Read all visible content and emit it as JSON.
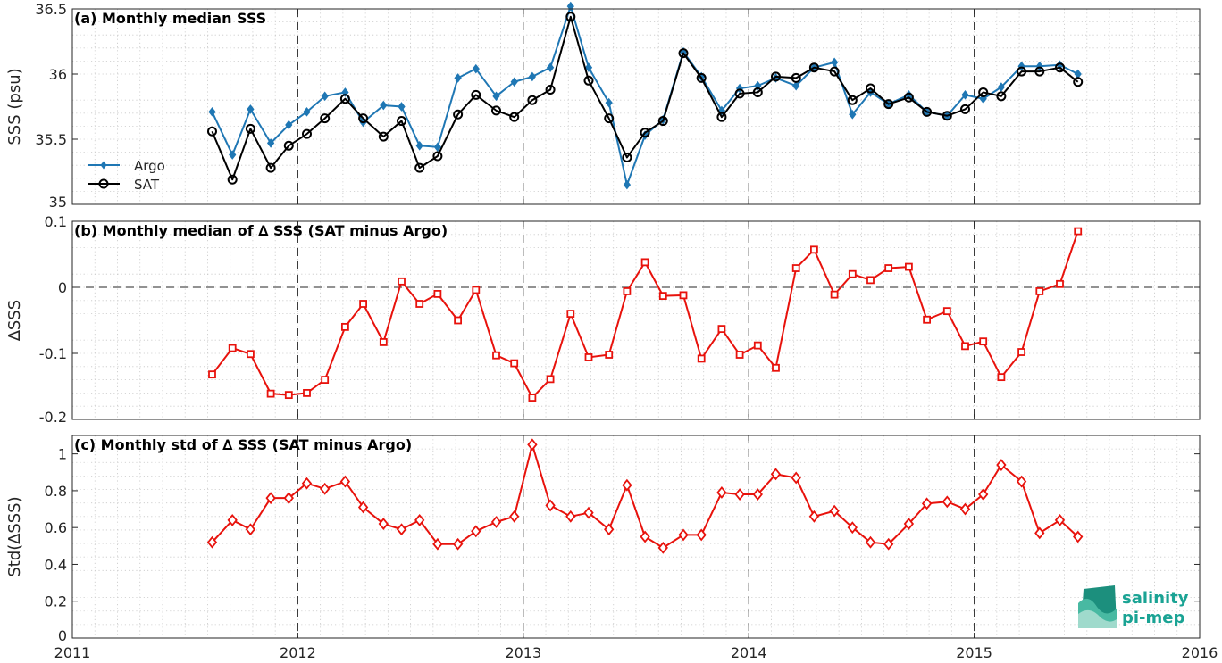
{
  "logo": {
    "line1": "salinity",
    "line2": "pi-mep"
  },
  "colors": {
    "argo": "#1f77b4",
    "sat": "#000000",
    "delta": "#e8120c",
    "grid": "#c8c8c8"
  },
  "chart_data": [
    {
      "id": "a",
      "type": "line",
      "title": "(a) Monthly median SSS",
      "ylabel": "SSS (psu)",
      "xlim": [
        2011,
        2016
      ],
      "ylim": [
        35,
        36.5
      ],
      "xticks": [
        "2011",
        "2012",
        "2013",
        "2014",
        "2015",
        "2016"
      ],
      "yticks": [
        "35",
        "35.5",
        "36",
        "36.5"
      ],
      "legend": "middle-left",
      "grid": true,
      "x": [
        2011.62,
        2011.71,
        2011.79,
        2011.88,
        2011.96,
        2012.04,
        2012.12,
        2012.21,
        2012.29,
        2012.38,
        2012.46,
        2012.54,
        2012.62,
        2012.71,
        2012.79,
        2012.88,
        2012.96,
        2013.04,
        2013.12,
        2013.21,
        2013.29,
        2013.38,
        2013.46,
        2013.54,
        2013.62,
        2013.71,
        2013.79,
        2013.88,
        2013.96,
        2014.04,
        2014.12,
        2014.21,
        2014.29,
        2014.38,
        2014.46,
        2014.54,
        2014.62,
        2014.71,
        2014.79,
        2014.88,
        2014.96,
        2015.04,
        2015.12,
        2015.21,
        2015.29,
        2015.38,
        2015.46
      ],
      "series": [
        {
          "name": "Argo",
          "marker": "diamond",
          "values": [
            35.71,
            35.38,
            35.73,
            35.47,
            35.61,
            35.71,
            35.83,
            35.86,
            35.63,
            35.76,
            35.75,
            35.45,
            35.44,
            35.97,
            36.04,
            35.83,
            35.94,
            35.98,
            36.05,
            36.52,
            36.05,
            35.78,
            35.15,
            35.53,
            35.65,
            36.17,
            35.98,
            35.72,
            35.89,
            35.91,
            35.97,
            35.91,
            36.05,
            36.09,
            35.69,
            35.86,
            35.77,
            35.84,
            35.71,
            35.68,
            35.84,
            35.81,
            35.9,
            36.06,
            36.06,
            36.07,
            36.0
          ]
        },
        {
          "name": "SAT",
          "marker": "circle",
          "values": [
            35.56,
            35.19,
            35.58,
            35.28,
            35.45,
            35.54,
            35.66,
            35.81,
            35.66,
            35.52,
            35.64,
            35.28,
            35.37,
            35.69,
            35.84,
            35.72,
            35.67,
            35.8,
            35.88,
            36.44,
            35.95,
            35.66,
            35.36,
            35.55,
            35.64,
            36.16,
            35.97,
            35.67,
            35.85,
            35.86,
            35.98,
            35.97,
            36.05,
            36.02,
            35.8,
            35.89,
            35.77,
            35.82,
            35.71,
            35.68,
            35.73,
            35.86,
            35.83,
            36.02,
            36.02,
            36.05,
            35.94
          ]
        }
      ]
    },
    {
      "id": "b",
      "type": "line",
      "title": "(b) Monthly median of ∆ SSS (SAT minus Argo)",
      "ylabel": "∆SSS",
      "xlim": [
        2011,
        2016
      ],
      "ylim": [
        -0.2,
        0.1
      ],
      "xticks": [
        "2011",
        "2012",
        "2013",
        "2014",
        "2015",
        "2016"
      ],
      "yticks": [
        "-0.2",
        "-0.1",
        "0",
        "0.1"
      ],
      "zero_line": true,
      "grid": true,
      "x": [
        2011.62,
        2011.71,
        2011.79,
        2011.88,
        2011.96,
        2012.04,
        2012.12,
        2012.21,
        2012.29,
        2012.38,
        2012.46,
        2012.54,
        2012.62,
        2012.71,
        2012.79,
        2012.88,
        2012.96,
        2013.04,
        2013.12,
        2013.21,
        2013.29,
        2013.38,
        2013.46,
        2013.54,
        2013.62,
        2013.71,
        2013.79,
        2013.88,
        2013.96,
        2014.04,
        2014.12,
        2014.21,
        2014.29,
        2014.38,
        2014.46,
        2014.54,
        2014.62,
        2014.71,
        2014.79,
        2014.88,
        2014.96,
        2015.04,
        2015.12,
        2015.21,
        2015.29,
        2015.38,
        2015.46
      ],
      "series": [
        {
          "name": "",
          "marker": "square",
          "values": [
            -0.132,
            -0.092,
            -0.101,
            -0.161,
            -0.163,
            -0.16,
            -0.14,
            -0.06,
            -0.025,
            -0.083,
            0.009,
            -0.025,
            -0.01,
            -0.05,
            -0.004,
            -0.103,
            -0.115,
            -0.167,
            -0.139,
            -0.04,
            -0.106,
            -0.102,
            -0.006,
            0.038,
            -0.013,
            -0.012,
            -0.108,
            -0.063,
            -0.102,
            -0.088,
            -0.122,
            0.029,
            0.057,
            -0.011,
            0.02,
            0.011,
            0.029,
            0.031,
            -0.049,
            -0.036,
            -0.089,
            -0.082,
            -0.136,
            -0.098,
            -0.006,
            0.005,
            0.085
          ]
        }
      ]
    },
    {
      "id": "c",
      "type": "line",
      "title": "(c) Monthly std of ∆ SSS (SAT minus Argo)",
      "ylabel": "Std(∆SSS)",
      "xlim": [
        2011,
        2016
      ],
      "ylim": [
        0,
        1.1
      ],
      "xticks": [
        "2011",
        "2012",
        "2013",
        "2014",
        "2015",
        "2016"
      ],
      "yticks": [
        "0",
        "0.2",
        "0.4",
        "0.6",
        "0.8",
        "1"
      ],
      "grid": true,
      "x": [
        2011.62,
        2011.71,
        2011.79,
        2011.88,
        2011.96,
        2012.04,
        2012.12,
        2012.21,
        2012.29,
        2012.38,
        2012.46,
        2012.54,
        2012.62,
        2012.71,
        2012.79,
        2012.88,
        2012.96,
        2013.04,
        2013.12,
        2013.21,
        2013.29,
        2013.38,
        2013.46,
        2013.54,
        2013.62,
        2013.71,
        2013.79,
        2013.88,
        2013.96,
        2014.04,
        2014.12,
        2014.21,
        2014.29,
        2014.38,
        2014.46,
        2014.54,
        2014.62,
        2014.71,
        2014.79,
        2014.88,
        2014.96,
        2015.04,
        2015.12,
        2015.21,
        2015.29,
        2015.38,
        2015.46
      ],
      "series": [
        {
          "name": "",
          "marker": "diamond-open",
          "values": [
            0.52,
            0.64,
            0.59,
            0.76,
            0.76,
            0.84,
            0.81,
            0.85,
            0.71,
            0.62,
            0.59,
            0.64,
            0.51,
            0.51,
            0.58,
            0.63,
            0.66,
            1.05,
            0.72,
            0.66,
            0.68,
            0.59,
            0.83,
            0.55,
            0.49,
            0.56,
            0.56,
            0.79,
            0.78,
            0.78,
            0.89,
            0.87,
            0.66,
            0.69,
            0.6,
            0.52,
            0.51,
            0.62,
            0.73,
            0.74,
            0.7,
            0.78,
            0.94,
            0.85,
            0.57,
            0.64,
            0.55
          ]
        }
      ]
    }
  ]
}
